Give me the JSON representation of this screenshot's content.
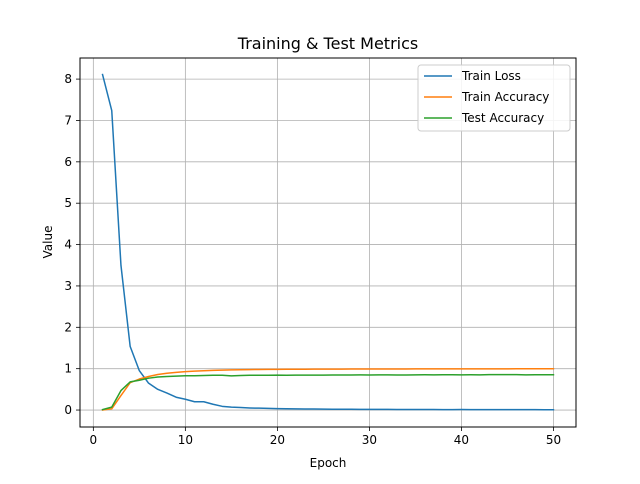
{
  "chart_data": {
    "type": "line",
    "title": "Training & Test Metrics",
    "xlabel": "Epoch",
    "ylabel": "Value",
    "xlim": [
      -1.45,
      52.45
    ],
    "ylim": [
      -0.41,
      8.51
    ],
    "xticks": [
      0,
      10,
      20,
      30,
      40,
      50
    ],
    "yticks": [
      0,
      1,
      2,
      3,
      4,
      5,
      6,
      7,
      8
    ],
    "grid": true,
    "legend_position": "top-right",
    "x": [
      1,
      2,
      3,
      4,
      5,
      6,
      7,
      8,
      9,
      10,
      11,
      12,
      13,
      14,
      15,
      16,
      17,
      18,
      19,
      20,
      21,
      22,
      23,
      24,
      25,
      26,
      27,
      28,
      29,
      30,
      31,
      32,
      33,
      34,
      35,
      36,
      37,
      38,
      39,
      40,
      41,
      42,
      43,
      44,
      45,
      46,
      47,
      48,
      49,
      50
    ],
    "series": [
      {
        "name": "Train Loss",
        "color": "#1f77b4",
        "values": [
          8.11,
          7.24,
          3.5,
          1.54,
          0.95,
          0.65,
          0.5,
          0.41,
          0.31,
          0.26,
          0.2,
          0.2,
          0.14,
          0.09,
          0.07,
          0.06,
          0.05,
          0.045,
          0.04,
          0.035,
          0.03,
          0.028,
          0.026,
          0.024,
          0.022,
          0.02,
          0.019,
          0.018,
          0.017,
          0.016,
          0.015,
          0.015,
          0.014,
          0.014,
          0.013,
          0.012,
          0.012,
          0.011,
          0.011,
          0.012,
          0.011,
          0.01,
          0.01,
          0.009,
          0.009,
          0.009,
          0.01,
          0.009,
          0.008,
          0.008
        ]
      },
      {
        "name": "Train Accuracy",
        "color": "#ff7f0e",
        "values": [
          0.0,
          0.03,
          0.35,
          0.66,
          0.75,
          0.81,
          0.86,
          0.89,
          0.91,
          0.93,
          0.94,
          0.95,
          0.96,
          0.965,
          0.97,
          0.975,
          0.978,
          0.98,
          0.982,
          0.984,
          0.985,
          0.986,
          0.987,
          0.988,
          0.989,
          0.99,
          0.99,
          0.991,
          0.991,
          0.992,
          0.992,
          0.993,
          0.993,
          0.993,
          0.994,
          0.994,
          0.994,
          0.995,
          0.995,
          0.995,
          0.995,
          0.996,
          0.996,
          0.996,
          0.996,
          0.997,
          0.997,
          0.997,
          0.997,
          0.997
        ]
      },
      {
        "name": "Test Accuracy",
        "color": "#2ca02c",
        "values": [
          0.01,
          0.07,
          0.47,
          0.68,
          0.72,
          0.77,
          0.8,
          0.81,
          0.82,
          0.83,
          0.83,
          0.835,
          0.84,
          0.84,
          0.825,
          0.835,
          0.84,
          0.84,
          0.84,
          0.845,
          0.84,
          0.845,
          0.845,
          0.845,
          0.845,
          0.848,
          0.848,
          0.848,
          0.85,
          0.848,
          0.85,
          0.85,
          0.848,
          0.848,
          0.85,
          0.852,
          0.85,
          0.852,
          0.852,
          0.85,
          0.852,
          0.85,
          0.855,
          0.855,
          0.855,
          0.855,
          0.85,
          0.852,
          0.852,
          0.852
        ]
      }
    ]
  }
}
